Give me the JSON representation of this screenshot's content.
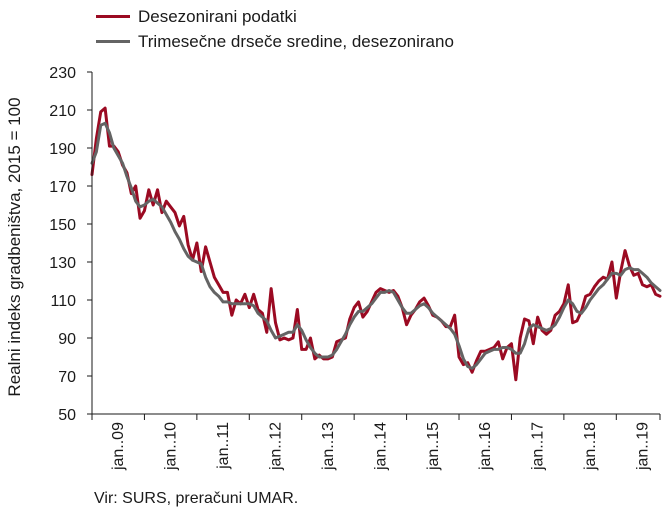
{
  "chart_data": {
    "type": "line",
    "ylabel": "Realni indeks gradbeništva, 2015 = 100",
    "ylim": [
      50,
      230
    ],
    "yticks": [
      50,
      70,
      90,
      110,
      130,
      150,
      170,
      190,
      210,
      230
    ],
    "xlabels": [
      "jan..09",
      "jan..10",
      "jan..11",
      "jan..12",
      "jan..13",
      "jan..14",
      "jan..15",
      "jan..16",
      "jan..17",
      "jan..18",
      "jan..19"
    ],
    "x_start": "jan. 2009",
    "months": 131,
    "grid": false,
    "legend_position": "top-left",
    "source": "Vir: SURS, preračuni UMAR.",
    "series": [
      {
        "name": "Desezonirani podatki",
        "color": "#9b0a22",
        "values": [
          176,
          195,
          209,
          211,
          191,
          191,
          188,
          181,
          177,
          166,
          170,
          153,
          157,
          168,
          160,
          168,
          156,
          162,
          159,
          156,
          149,
          154,
          139,
          131,
          140,
          125,
          138,
          130,
          122,
          118,
          114,
          114,
          102,
          110,
          108,
          113,
          106,
          113,
          105,
          103,
          93,
          116,
          98,
          89,
          90,
          89,
          90,
          105,
          84,
          84,
          90,
          79,
          81,
          79,
          79,
          80,
          88,
          89,
          90,
          100,
          106,
          109,
          101,
          104,
          109,
          114,
          116,
          115,
          114,
          115,
          112,
          106,
          97,
          102,
          105,
          109,
          111,
          107,
          102,
          101,
          99,
          96,
          96,
          102,
          80,
          76,
          77,
          72,
          78,
          83,
          83,
          84,
          85,
          88,
          79,
          85,
          87,
          68,
          90,
          100,
          99,
          87,
          101,
          94,
          92,
          94,
          102,
          104,
          108,
          118,
          98,
          99,
          104,
          112,
          113,
          117,
          120,
          122,
          121,
          130,
          111,
          125,
          136,
          128,
          123,
          124,
          118,
          117,
          118,
          113,
          112
        ],
        "width": 3
      },
      {
        "name": "Trimesečne drseče sredine, desezonirano",
        "color": "#646464",
        "values": [
          182,
          188,
          202,
          203,
          198,
          190,
          186,
          182,
          175,
          169,
          162,
          159,
          160,
          162,
          163,
          161,
          159,
          155,
          151,
          146,
          142,
          137,
          133,
          131,
          130,
          129,
          122,
          117,
          114,
          112,
          109,
          109,
          108,
          108,
          108,
          108,
          108,
          107,
          103,
          101,
          99,
          94,
          90,
          91,
          92,
          93,
          93,
          97,
          94,
          89,
          85,
          82,
          80,
          80,
          80,
          81,
          84,
          88,
          92,
          97,
          101,
          104,
          104,
          106,
          108,
          111,
          114,
          114,
          115,
          114,
          110,
          106,
          103,
          103,
          105,
          107,
          108,
          106,
          103,
          101,
          99,
          97,
          95,
          92,
          86,
          79,
          75,
          74,
          76,
          79,
          82,
          83,
          84,
          84,
          85,
          85,
          84,
          82,
          82,
          87,
          95,
          97,
          96,
          95,
          94,
          95,
          97,
          101,
          106,
          110,
          108,
          104,
          103,
          106,
          110,
          113,
          116,
          118,
          121,
          124,
          124,
          123,
          126,
          127,
          126,
          126,
          124,
          122,
          119,
          117,
          115
        ],
        "width": 3
      }
    ]
  }
}
